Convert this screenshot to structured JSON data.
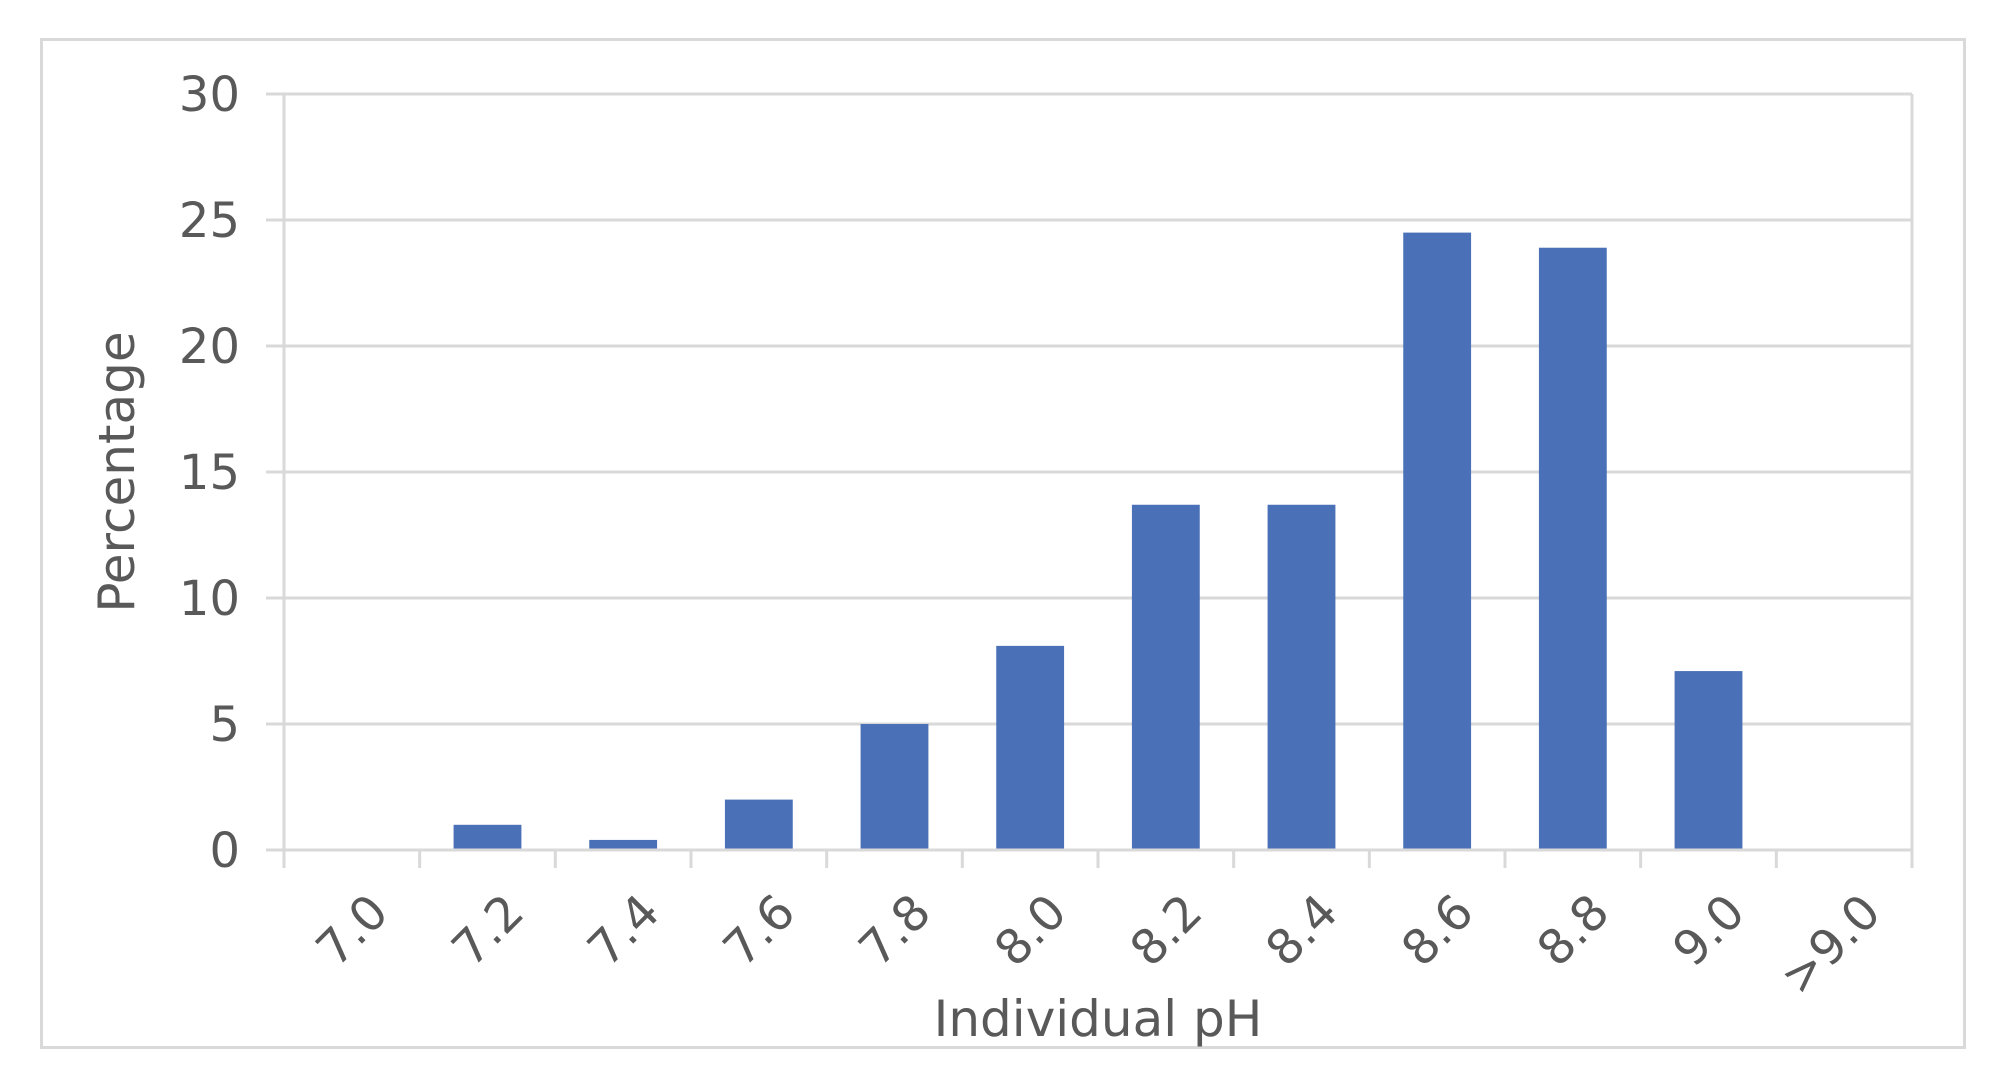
{
  "chart_data": {
    "type": "bar",
    "title": "",
    "xlabel": "Individual pH",
    "ylabel": "Percentage",
    "categories": [
      "7.0",
      "7.2",
      "7.4",
      "7.6",
      "7.8",
      "8.0",
      "8.2",
      "8.4",
      "8.6",
      "8.8",
      "9.0",
      ">9.0"
    ],
    "values": [
      0,
      1.0,
      0.4,
      2.0,
      5.0,
      8.1,
      13.7,
      13.7,
      24.5,
      23.9,
      7.1,
      0
    ],
    "ylim": [
      0,
      30
    ],
    "yticks": [
      0,
      5,
      10,
      15,
      20,
      25,
      30
    ],
    "grid": true,
    "legend": "none",
    "bar_color": "#4a70b7",
    "grid_color": "#d9d9d9",
    "axis_color": "#d9d9d9",
    "text_color": "#595959"
  }
}
